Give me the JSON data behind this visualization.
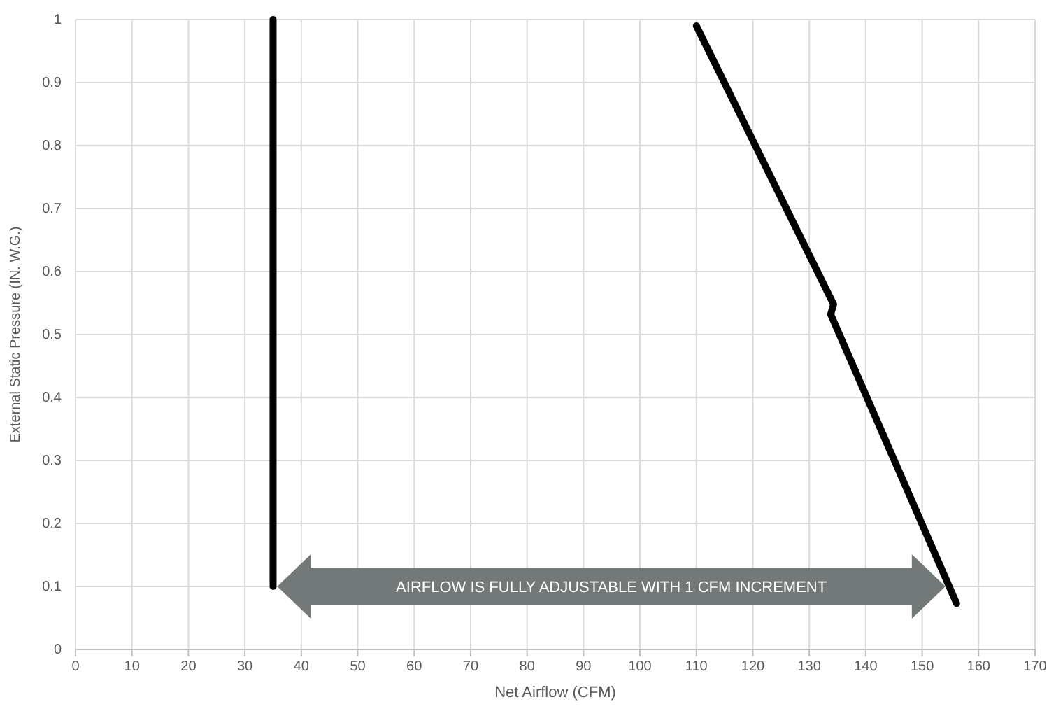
{
  "chart_data": {
    "type": "line",
    "xlabel": "Net Airflow (CFM)",
    "ylabel": "External Static Pressure (IN. W.G.)",
    "xlim": [
      0,
      170
    ],
    "xticks": [
      0,
      10,
      20,
      30,
      40,
      50,
      60,
      70,
      80,
      90,
      100,
      110,
      120,
      130,
      140,
      150,
      160,
      170
    ],
    "ylim": [
      0,
      1
    ],
    "yticks": [
      0,
      0.1,
      0.2,
      0.3,
      0.4,
      0.5,
      0.6,
      0.7,
      0.8,
      0.9,
      1
    ],
    "grid": true,
    "marker": "none",
    "line_style": "solid",
    "series": [
      {
        "color": "#000000",
        "x": [
          35,
          35
        ],
        "values": [
          0.1,
          1
        ]
      },
      {
        "color": "#000000",
        "x": [
          110,
          134.3,
          133.8,
          156.1
        ],
        "values": [
          0.99,
          0.548,
          0.532,
          0.073
        ]
      }
    ],
    "annotations": [
      "AIRFLOW IS FULLY ADJUSTABLE WITH 1 CFM INCREMENT"
    ]
  }
}
